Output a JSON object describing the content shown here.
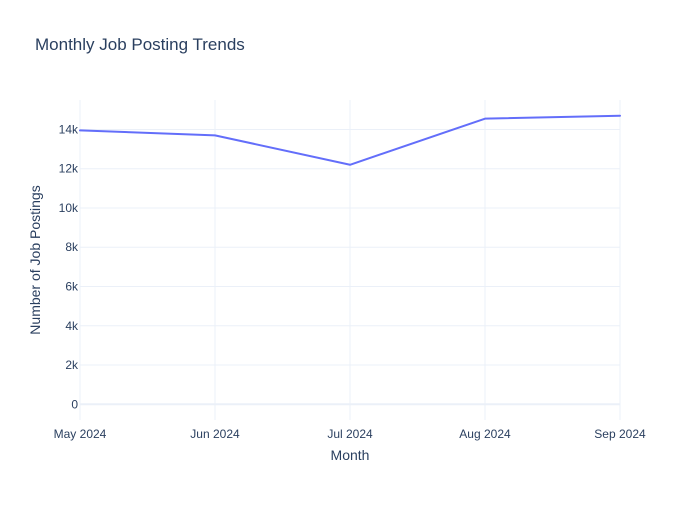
{
  "chart_data": {
    "type": "line",
    "title": "Monthly Job Posting Trends",
    "xlabel": "Month",
    "ylabel": "Number of Job Postings",
    "categories": [
      "May 2024",
      "Jun 2024",
      "Jul 2024",
      "Aug 2024",
      "Sep 2024"
    ],
    "series": [
      {
        "values": [
          13950,
          13700,
          12200,
          14550,
          14700
        ]
      }
    ],
    "ylim": [
      -800,
      15500
    ],
    "yticks": [
      0,
      2000,
      4000,
      6000,
      8000,
      10000,
      12000,
      14000
    ],
    "ytick_labels": [
      "0",
      "2k",
      "4k",
      "6k",
      "8k",
      "10k",
      "12k",
      "14k"
    ],
    "grid": true,
    "legend": "none",
    "colors": {
      "line": "#636efa",
      "grid": "#ebf0f8",
      "text": "#2a3f5f"
    }
  }
}
